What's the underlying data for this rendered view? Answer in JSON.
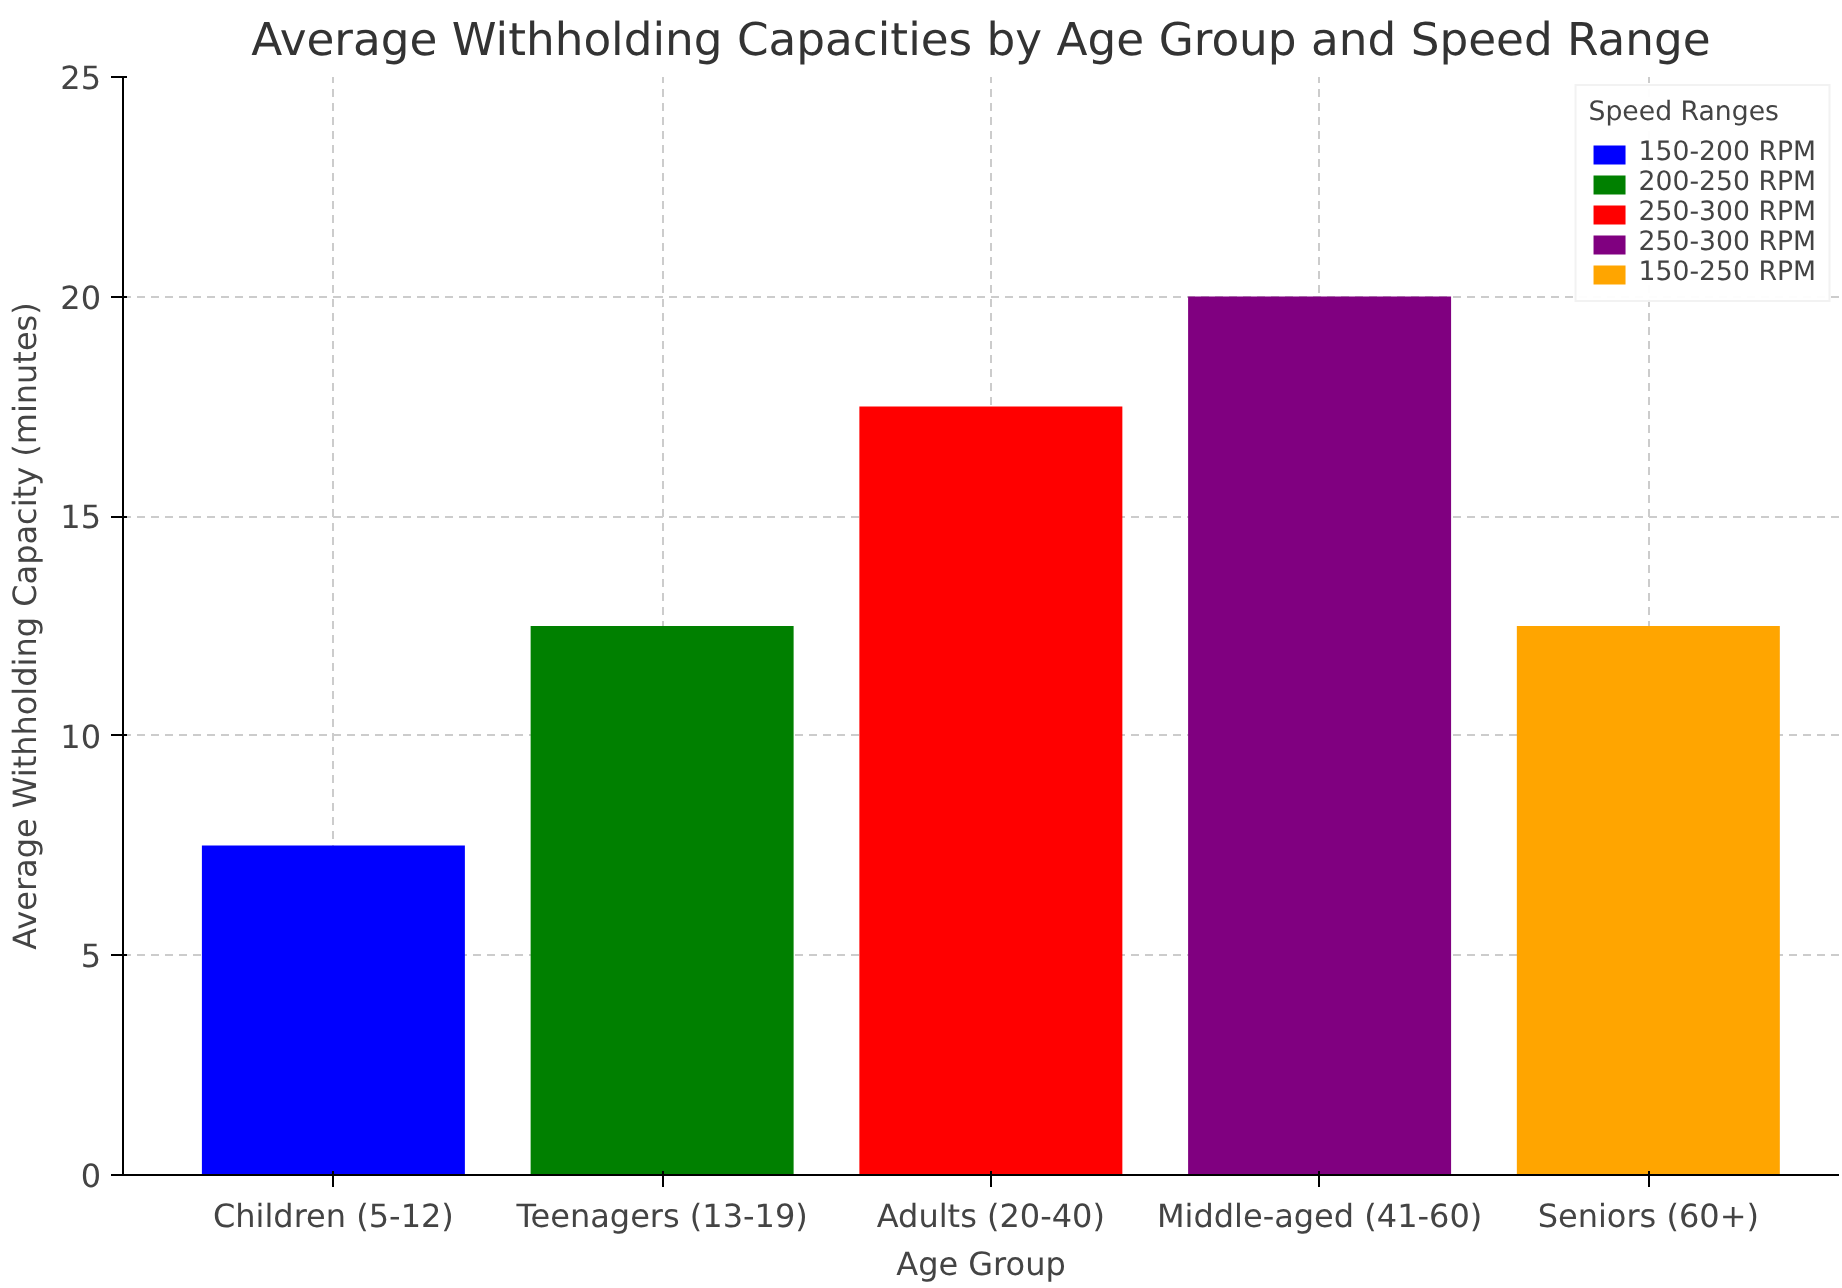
{
  "chart_data": {
    "type": "bar",
    "title": "Average Withholding Capacities by Age Group and Speed Range",
    "xlabel": "Age Group",
    "ylabel": "Average Withholding Capacity (minutes)",
    "legend_title": "Speed Ranges",
    "categories": [
      "Children (5-12)",
      "Teenagers (13-19)",
      "Adults (20-40)",
      "Middle-aged (41-60)",
      "Seniors (60+)"
    ],
    "series": [
      {
        "name": "150-200 RPM",
        "color": "#0000ff",
        "values": [
          7.5,
          null,
          null,
          null,
          null
        ]
      },
      {
        "name": "200-250 RPM",
        "color": "#008000",
        "values": [
          null,
          12.5,
          null,
          null,
          null
        ]
      },
      {
        "name": "250-300 RPM",
        "color": "#ff0000",
        "values": [
          null,
          null,
          17.5,
          null,
          null
        ]
      },
      {
        "name": "250-300 RPM",
        "color": "#800080",
        "values": [
          null,
          null,
          null,
          20,
          null
        ]
      },
      {
        "name": "150-250 RPM",
        "color": "#ffa500",
        "values": [
          null,
          null,
          null,
          null,
          12.5
        ]
      }
    ],
    "ylim": [
      0,
      25
    ],
    "yticks": [
      0,
      5,
      10,
      15,
      20,
      25
    ],
    "grid": true,
    "legend": "top right"
  }
}
